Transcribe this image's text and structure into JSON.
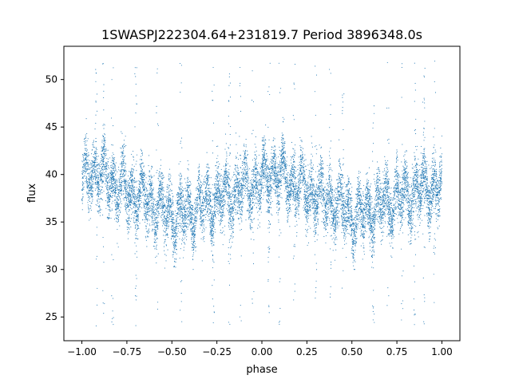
{
  "chart_data": {
    "type": "scatter",
    "title": "1SWASPJ222304.64+231819.7 Period 3896348.0s",
    "xlabel": "phase",
    "ylabel": "flux",
    "xlim": [
      -1.1,
      1.1
    ],
    "ylim": [
      22.5,
      53.5
    ],
    "x_ticks": [
      -1.0,
      -0.75,
      -0.5,
      -0.25,
      0.0,
      0.25,
      0.5,
      0.75,
      1.0
    ],
    "x_tick_labels": [
      "−1.00",
      "−0.75",
      "−0.50",
      "−0.25",
      "0.00",
      "0.25",
      "0.50",
      "0.75",
      "1.00"
    ],
    "y_ticks": [
      25,
      30,
      35,
      40,
      45,
      50
    ],
    "y_tick_labels": [
      "25",
      "30",
      "35",
      "40",
      "45",
      "50"
    ],
    "grid": false,
    "legend": "none",
    "marker_color": "#1f77b4",
    "series": [
      {
        "x_range": [
          -1.0,
          1.0
        ],
        "point_count": 12000,
        "trend_phase": [
          -1.0,
          -0.95,
          -0.85,
          -0.75,
          -0.65,
          -0.55,
          -0.48,
          -0.4,
          -0.3,
          -0.2,
          -0.1,
          0.0,
          0.05,
          0.15,
          0.25,
          0.35,
          0.45,
          0.52,
          0.6,
          0.7,
          0.8,
          0.9,
          1.0
        ],
        "trend_flux": [
          39.0,
          40.5,
          39.5,
          38.2,
          37.5,
          36.2,
          35.5,
          36.2,
          37.0,
          37.8,
          38.5,
          39.2,
          40.2,
          39.5,
          38.2,
          37.5,
          36.5,
          35.5,
          36.2,
          37.0,
          37.8,
          38.5,
          39.0
        ],
        "scatter_band": [
          32.0,
          45.0
        ],
        "outlier_range": [
          24.0,
          52.0
        ]
      }
    ]
  }
}
